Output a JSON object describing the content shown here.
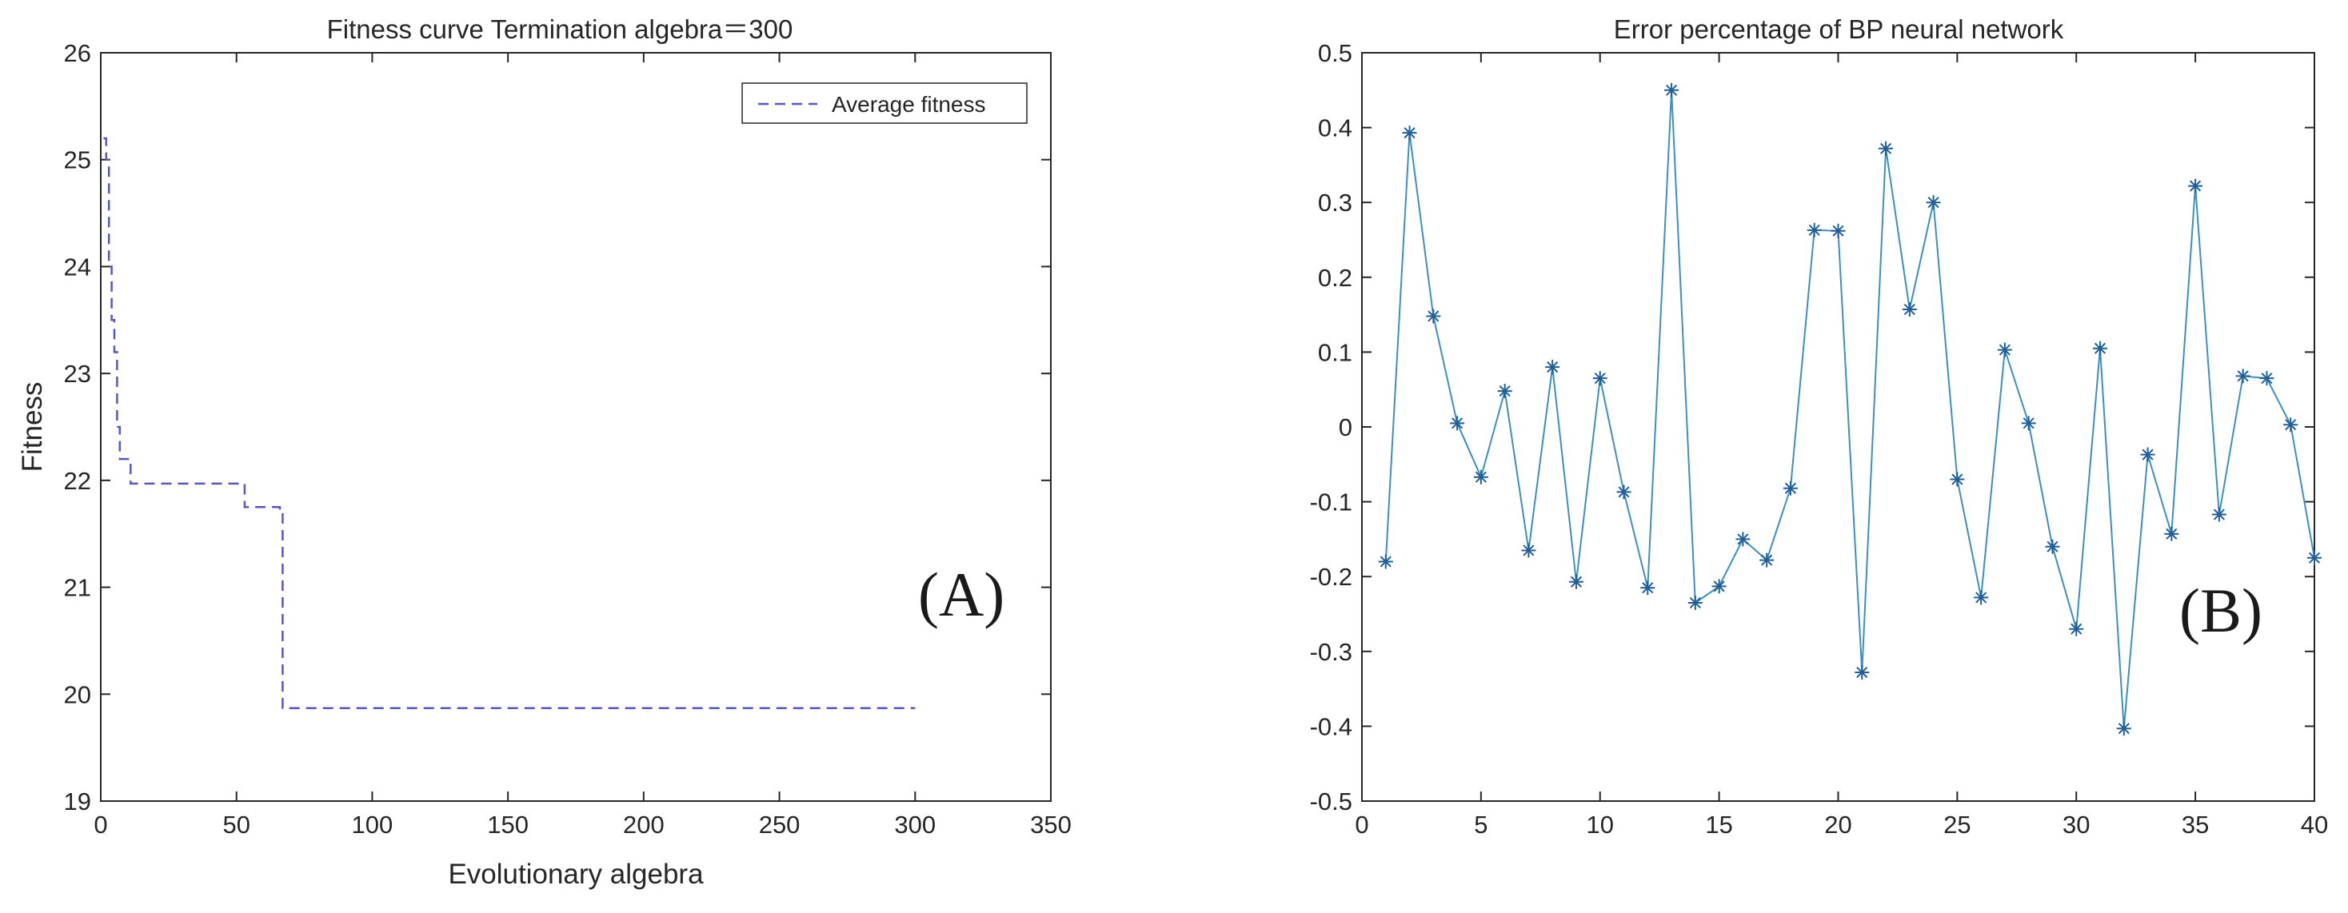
{
  "chart_data": [
    {
      "type": "line",
      "title": "Fitness curve  Termination algebra＝300",
      "xlabel": "Evolutionary algebra",
      "ylabel": "Fitness",
      "xlim": [
        0,
        350
      ],
      "ylim": [
        19,
        26
      ],
      "xticks": [
        0,
        50,
        100,
        150,
        200,
        250,
        300,
        350
      ],
      "yticks": [
        19,
        20,
        21,
        22,
        23,
        24,
        25,
        26
      ],
      "grid": false,
      "legend": {
        "entries": [
          "Average fitness"
        ],
        "placement": "top-right"
      },
      "panel_label": "(A)",
      "series": [
        {
          "name": "Average fitness",
          "style": "dashed",
          "color": "#5555cc",
          "x": [
            1,
            2,
            2,
            3,
            3,
            4,
            4,
            5,
            5,
            6,
            6,
            7,
            7,
            11,
            11,
            53,
            53,
            66,
            66,
            67,
            67,
            300
          ],
          "y": [
            25.2,
            25.2,
            25.0,
            25.0,
            24.0,
            24.0,
            23.5,
            23.5,
            23.2,
            23.2,
            22.5,
            22.5,
            22.2,
            22.2,
            21.97,
            21.97,
            21.75,
            21.75,
            21.7,
            21.7,
            19.87,
            19.87
          ]
        }
      ]
    },
    {
      "type": "line",
      "title": "Error percentage of BP neural network",
      "xlabel": "",
      "ylabel": "",
      "xlim": [
        0,
        40
      ],
      "ylim": [
        -0.5,
        0.5
      ],
      "xticks": [
        0,
        5,
        10,
        15,
        20,
        25,
        30,
        35,
        40
      ],
      "yticks": [
        -0.5,
        -0.4,
        -0.3,
        -0.2,
        -0.1,
        0,
        0.1,
        0.2,
        0.3,
        0.4,
        0.5
      ],
      "ytick_labels": [
        "-0.5",
        "-0.4",
        "-0.3",
        "-0.2",
        "-0.1",
        "0",
        "0.1",
        "0.2",
        "0.3",
        "0.4",
        "0.5"
      ],
      "grid": false,
      "panel_label": "(B)",
      "series": [
        {
          "name": "Error percentage",
          "marker": "asterisk",
          "color": "#3a8fc4",
          "marker_color": "#1f5f9a",
          "x": [
            1,
            2,
            3,
            4,
            5,
            6,
            7,
            8,
            9,
            10,
            11,
            12,
            13,
            14,
            15,
            16,
            17,
            18,
            19,
            20,
            21,
            22,
            23,
            24,
            25,
            26,
            27,
            28,
            29,
            30,
            31,
            32,
            33,
            34,
            35,
            36,
            37,
            38,
            39,
            40
          ],
          "y": [
            -0.18,
            0.393,
            0.148,
            0.005,
            -0.067,
            0.048,
            -0.165,
            0.08,
            -0.207,
            0.065,
            -0.087,
            -0.215,
            0.45,
            -0.235,
            -0.213,
            -0.15,
            -0.178,
            -0.082,
            0.263,
            0.262,
            -0.328,
            0.372,
            0.157,
            0.3,
            -0.07,
            -0.228,
            0.103,
            0.005,
            -0.16,
            -0.27,
            0.105,
            -0.403,
            -0.037,
            -0.143,
            0.322,
            -0.117,
            0.068,
            0.065,
            0.003,
            -0.175
          ]
        }
      ]
    }
  ]
}
